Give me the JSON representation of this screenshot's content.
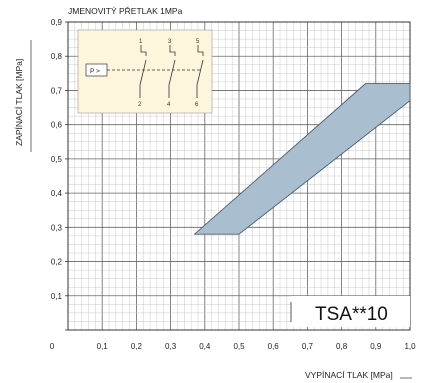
{
  "chart_data": {
    "type": "area",
    "title": "JMENOVITÝ PŘETLAK 1MPa",
    "xlabel": "VYPÍNACÍ TLAK [MPa]",
    "ylabel": "ZAPÍNACÍ TLAK [MPa]",
    "xlim": [
      0,
      1.0
    ],
    "ylim": [
      0,
      0.9
    ],
    "x_ticks": [
      "0",
      "0,1",
      "0,2",
      "0,3",
      "0,4",
      "0,5",
      "0,6",
      "0,7",
      "0,8",
      "0,9",
      "1,0"
    ],
    "y_ticks": [
      "0",
      "0,1",
      "0,2",
      "0,3",
      "0,4",
      "0,5",
      "0,6",
      "0,7",
      "0,8",
      "0,9"
    ],
    "grid": true,
    "band": {
      "polygon": [
        [
          0.37,
          0.28
        ],
        [
          0.5,
          0.28
        ],
        [
          1.0,
          0.67
        ],
        [
          1.0,
          0.72
        ],
        [
          0.87,
          0.72
        ]
      ],
      "color": "#a9bfd0"
    },
    "model_label": "TSA**10",
    "inset": {
      "label": "P >",
      "terminals_top": [
        "1",
        "3",
        "5"
      ],
      "terminals_bottom": [
        "2",
        "4",
        "6"
      ],
      "background": "#fdf6dc"
    }
  }
}
